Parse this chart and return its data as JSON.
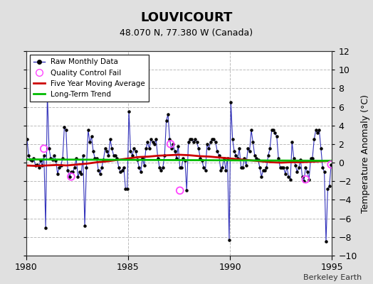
{
  "title": "LOUVICOURT",
  "subtitle": "48.070 N, 77.380 W (Canada)",
  "ylabel": "Temperature Anomaly (°C)",
  "watermark": "Berkeley Earth",
  "xlim": [
    1980,
    1995
  ],
  "ylim": [
    -10,
    12
  ],
  "yticks": [
    -10,
    -8,
    -6,
    -4,
    -2,
    0,
    2,
    4,
    6,
    8,
    10,
    12
  ],
  "xticks": [
    1980,
    1985,
    1990,
    1995
  ],
  "background_color": "#e0e0e0",
  "plot_bg_color": "#ffffff",
  "raw_color": "#3333bb",
  "dot_color": "#000000",
  "moving_avg_color": "#cc0000",
  "trend_color": "#00bb00",
  "qc_fail_color": "#ff44ff",
  "raw_monthly": [
    [
      1980.042,
      2.5
    ],
    [
      1980.125,
      0.8
    ],
    [
      1980.208,
      0.3
    ],
    [
      1980.292,
      0.2
    ],
    [
      1980.375,
      0.5
    ],
    [
      1980.458,
      -0.3
    ],
    [
      1980.542,
      -0.2
    ],
    [
      1980.625,
      -0.5
    ],
    [
      1980.708,
      0.2
    ],
    [
      1980.792,
      -0.3
    ],
    [
      1980.875,
      0.8
    ],
    [
      1980.958,
      -7.0
    ],
    [
      1981.042,
      7.5
    ],
    [
      1981.125,
      1.5
    ],
    [
      1981.208,
      0.5
    ],
    [
      1981.292,
      0.3
    ],
    [
      1981.375,
      0.8
    ],
    [
      1981.458,
      0.2
    ],
    [
      1981.542,
      -1.2
    ],
    [
      1981.625,
      -0.5
    ],
    [
      1981.708,
      -0.3
    ],
    [
      1981.792,
      0.5
    ],
    [
      1981.875,
      3.8
    ],
    [
      1981.958,
      3.5
    ],
    [
      1982.042,
      -0.8
    ],
    [
      1982.125,
      -1.5
    ],
    [
      1982.208,
      -1.0
    ],
    [
      1982.292,
      -1.0
    ],
    [
      1982.375,
      -0.5
    ],
    [
      1982.458,
      0.5
    ],
    [
      1982.542,
      -1.5
    ],
    [
      1982.625,
      -1.0
    ],
    [
      1982.708,
      -1.2
    ],
    [
      1982.792,
      0.8
    ],
    [
      1982.875,
      -6.8
    ],
    [
      1982.958,
      -0.5
    ],
    [
      1983.042,
      3.5
    ],
    [
      1983.125,
      2.2
    ],
    [
      1983.208,
      2.8
    ],
    [
      1983.292,
      1.2
    ],
    [
      1983.375,
      0.5
    ],
    [
      1983.458,
      0.5
    ],
    [
      1983.542,
      -0.8
    ],
    [
      1983.625,
      -1.2
    ],
    [
      1983.708,
      -0.5
    ],
    [
      1983.792,
      0.3
    ],
    [
      1983.875,
      1.5
    ],
    [
      1983.958,
      1.2
    ],
    [
      1984.042,
      0.8
    ],
    [
      1984.125,
      2.5
    ],
    [
      1984.208,
      1.5
    ],
    [
      1984.292,
      0.8
    ],
    [
      1984.375,
      0.8
    ],
    [
      1984.458,
      0.5
    ],
    [
      1984.542,
      -0.5
    ],
    [
      1984.625,
      -1.0
    ],
    [
      1984.708,
      -0.8
    ],
    [
      1984.792,
      -0.5
    ],
    [
      1984.875,
      -2.8
    ],
    [
      1984.958,
      -2.8
    ],
    [
      1985.042,
      5.5
    ],
    [
      1985.125,
      1.2
    ],
    [
      1985.208,
      0.8
    ],
    [
      1985.292,
      1.5
    ],
    [
      1985.375,
      1.2
    ],
    [
      1985.458,
      0.3
    ],
    [
      1985.542,
      -0.5
    ],
    [
      1985.625,
      -1.0
    ],
    [
      1985.708,
      0.5
    ],
    [
      1985.792,
      -0.3
    ],
    [
      1985.875,
      1.5
    ],
    [
      1985.958,
      2.2
    ],
    [
      1986.042,
      1.5
    ],
    [
      1986.125,
      2.5
    ],
    [
      1986.208,
      2.2
    ],
    [
      1986.292,
      2.0
    ],
    [
      1986.375,
      2.5
    ],
    [
      1986.458,
      0.5
    ],
    [
      1986.542,
      -0.5
    ],
    [
      1986.625,
      -0.8
    ],
    [
      1986.708,
      -0.5
    ],
    [
      1986.792,
      0.8
    ],
    [
      1986.875,
      4.5
    ],
    [
      1986.958,
      5.2
    ],
    [
      1987.042,
      2.5
    ],
    [
      1987.125,
      1.5
    ],
    [
      1987.208,
      2.0
    ],
    [
      1987.292,
      1.2
    ],
    [
      1987.375,
      0.5
    ],
    [
      1987.458,
      1.8
    ],
    [
      1987.542,
      -0.5
    ],
    [
      1987.625,
      -0.5
    ],
    [
      1987.708,
      0.5
    ],
    [
      1987.792,
      0.2
    ],
    [
      1987.875,
      -3.0
    ],
    [
      1987.958,
      2.2
    ],
    [
      1988.042,
      2.5
    ],
    [
      1988.125,
      2.5
    ],
    [
      1988.208,
      2.2
    ],
    [
      1988.292,
      2.5
    ],
    [
      1988.375,
      2.2
    ],
    [
      1988.458,
      1.5
    ],
    [
      1988.542,
      0.5
    ],
    [
      1988.625,
      0.2
    ],
    [
      1988.708,
      -0.5
    ],
    [
      1988.792,
      -0.8
    ],
    [
      1988.875,
      2.0
    ],
    [
      1988.958,
      1.5
    ],
    [
      1989.042,
      2.2
    ],
    [
      1989.125,
      2.5
    ],
    [
      1989.208,
      2.5
    ],
    [
      1989.292,
      2.2
    ],
    [
      1989.375,
      1.2
    ],
    [
      1989.458,
      0.8
    ],
    [
      1989.542,
      -0.8
    ],
    [
      1989.625,
      -0.5
    ],
    [
      1989.708,
      0.5
    ],
    [
      1989.792,
      -0.8
    ],
    [
      1989.875,
      0.5
    ],
    [
      1989.958,
      -8.3
    ],
    [
      1990.042,
      6.5
    ],
    [
      1990.125,
      2.5
    ],
    [
      1990.208,
      1.2
    ],
    [
      1990.292,
      0.8
    ],
    [
      1990.375,
      0.5
    ],
    [
      1990.458,
      1.5
    ],
    [
      1990.542,
      -0.5
    ],
    [
      1990.625,
      -0.5
    ],
    [
      1990.708,
      0.5
    ],
    [
      1990.792,
      -0.3
    ],
    [
      1990.875,
      1.5
    ],
    [
      1990.958,
      1.2
    ],
    [
      1991.042,
      3.5
    ],
    [
      1991.125,
      2.2
    ],
    [
      1991.208,
      0.8
    ],
    [
      1991.292,
      0.5
    ],
    [
      1991.375,
      0.3
    ],
    [
      1991.458,
      -0.5
    ],
    [
      1991.542,
      -1.5
    ],
    [
      1991.625,
      -0.8
    ],
    [
      1991.708,
      -0.8
    ],
    [
      1991.792,
      -0.5
    ],
    [
      1991.875,
      0.8
    ],
    [
      1991.958,
      1.5
    ],
    [
      1992.042,
      3.5
    ],
    [
      1992.125,
      3.5
    ],
    [
      1992.208,
      3.2
    ],
    [
      1992.292,
      2.8
    ],
    [
      1992.375,
      0.5
    ],
    [
      1992.458,
      -0.5
    ],
    [
      1992.542,
      -0.5
    ],
    [
      1992.625,
      -0.5
    ],
    [
      1992.708,
      -1.2
    ],
    [
      1992.792,
      -0.5
    ],
    [
      1992.875,
      -1.5
    ],
    [
      1992.958,
      -1.8
    ],
    [
      1993.042,
      2.2
    ],
    [
      1993.125,
      0.5
    ],
    [
      1993.208,
      -0.3
    ],
    [
      1993.292,
      -1.0
    ],
    [
      1993.375,
      -0.5
    ],
    [
      1993.458,
      0.3
    ],
    [
      1993.542,
      -1.5
    ],
    [
      1993.625,
      -2.0
    ],
    [
      1993.708,
      -0.5
    ],
    [
      1993.792,
      -1.0
    ],
    [
      1993.875,
      -1.8
    ],
    [
      1993.958,
      0.5
    ],
    [
      1994.042,
      0.5
    ],
    [
      1994.125,
      2.5
    ],
    [
      1994.208,
      3.5
    ],
    [
      1994.292,
      3.2
    ],
    [
      1994.375,
      3.5
    ],
    [
      1994.458,
      1.5
    ],
    [
      1994.542,
      -0.5
    ],
    [
      1994.625,
      -1.0
    ],
    [
      1994.708,
      -8.5
    ],
    [
      1994.792,
      -2.8
    ],
    [
      1994.875,
      -2.5
    ],
    [
      1994.958,
      -0.2
    ]
  ],
  "qc_fail_points": [
    [
      1980.875,
      1.5
    ],
    [
      1982.208,
      -1.5
    ],
    [
      1987.083,
      2.0
    ],
    [
      1987.542,
      -3.0
    ],
    [
      1993.708,
      -1.8
    ],
    [
      1994.958,
      -0.2
    ]
  ],
  "moving_avg_x": [
    1980.0,
    1980.5,
    1981.0,
    1981.5,
    1982.0,
    1982.5,
    1983.0,
    1983.5,
    1984.0,
    1984.5,
    1985.0,
    1985.5,
    1986.0,
    1986.5,
    1987.0,
    1987.5,
    1988.0,
    1988.5,
    1989.0,
    1989.5,
    1990.0,
    1990.5,
    1991.0,
    1991.5,
    1992.0,
    1992.5,
    1993.0,
    1993.5,
    1994.0,
    1994.5,
    1995.0
  ],
  "moving_avg_y": [
    -0.3,
    -0.35,
    -0.3,
    -0.25,
    -0.3,
    -0.2,
    -0.1,
    0.05,
    0.15,
    0.3,
    0.45,
    0.6,
    0.65,
    0.75,
    0.8,
    0.85,
    0.8,
    0.7,
    0.65,
    0.55,
    0.45,
    0.35,
    0.25,
    0.15,
    0.05,
    0.0,
    0.05,
    0.05,
    0.1,
    0.15,
    0.2
  ],
  "trend_x": [
    1980.0,
    1995.0
  ],
  "trend_y": [
    0.35,
    0.2
  ]
}
